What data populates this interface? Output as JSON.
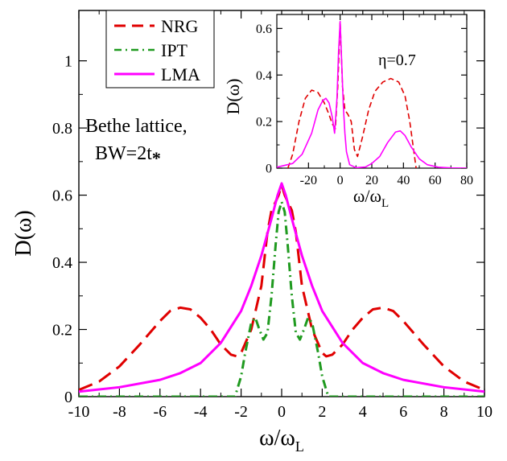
{
  "chart_data": [
    {
      "id": "main",
      "type": "line",
      "xlabel": {
        "base": "ω/ω",
        "sub": "L"
      },
      "ylabel": "D(ω)",
      "xlim": [
        -10,
        10
      ],
      "ylim": [
        0,
        1.15
      ],
      "xticks": [
        -10,
        -8,
        -6,
        -4,
        -2,
        0,
        2,
        4,
        6,
        8,
        10
      ],
      "xtick_labels": [
        "-10",
        "-8",
        "-6",
        "-4",
        "-2",
        "0",
        "2",
        "4",
        "6",
        "8",
        "10"
      ],
      "yticks": [
        0,
        0.2,
        0.4,
        0.6,
        0.8,
        1
      ],
      "ytick_labels": [
        "0",
        "0.2",
        "0.4",
        "0.6",
        "0.8",
        "1"
      ],
      "annotation": {
        "line1": "Bethe lattice,",
        "line2": "BW=2t",
        "line2_sub": "*"
      },
      "legend": {
        "placement": "top-left",
        "entries": [
          "NRG",
          "IPT",
          "LMA"
        ]
      },
      "series": [
        {
          "name": "NRG",
          "color": "#e00000",
          "style": "dashed",
          "points": [
            [
              -10,
              0.02
            ],
            [
              -9,
              0.045
            ],
            [
              -8,
              0.09
            ],
            [
              -7,
              0.155
            ],
            [
              -6,
              0.225
            ],
            [
              -5.5,
              0.255
            ],
            [
              -5,
              0.265
            ],
            [
              -4.5,
              0.26
            ],
            [
              -4,
              0.235
            ],
            [
              -3.5,
              0.2
            ],
            [
              -3,
              0.155
            ],
            [
              -2.5,
              0.125
            ],
            [
              -2.2,
              0.12
            ],
            [
              -2,
              0.13
            ],
            [
              -1.5,
              0.2
            ],
            [
              -1,
              0.33
            ],
            [
              -0.7,
              0.49
            ],
            [
              -0.5,
              0.555
            ],
            [
              -0.3,
              0.58
            ],
            [
              -0.15,
              0.6
            ],
            [
              0,
              0.63
            ],
            [
              0.15,
              0.6
            ],
            [
              0.3,
              0.58
            ],
            [
              0.5,
              0.555
            ],
            [
              0.7,
              0.49
            ],
            [
              1,
              0.33
            ],
            [
              1.5,
              0.2
            ],
            [
              2,
              0.13
            ],
            [
              2.2,
              0.12
            ],
            [
              2.5,
              0.125
            ],
            [
              3,
              0.155
            ],
            [
              3.5,
              0.2
            ],
            [
              4,
              0.235
            ],
            [
              4.5,
              0.26
            ],
            [
              5,
              0.265
            ],
            [
              5.5,
              0.255
            ],
            [
              6,
              0.225
            ],
            [
              7,
              0.155
            ],
            [
              8,
              0.09
            ],
            [
              9,
              0.045
            ],
            [
              10,
              0.02
            ]
          ]
        },
        {
          "name": "IPT",
          "color": "#1f9a1f",
          "style": "dashdot",
          "points": [
            [
              -10,
              0
            ],
            [
              -2.3,
              0
            ],
            [
              -2,
              0.06
            ],
            [
              -1.8,
              0.13
            ],
            [
              -1.5,
              0.22
            ],
            [
              -1.3,
              0.235
            ],
            [
              -1.1,
              0.2
            ],
            [
              -0.9,
              0.17
            ],
            [
              -0.7,
              0.19
            ],
            [
              -0.5,
              0.3
            ],
            [
              -0.3,
              0.45
            ],
            [
              -0.15,
              0.55
            ],
            [
              0,
              0.58
            ],
            [
              0.15,
              0.55
            ],
            [
              0.3,
              0.45
            ],
            [
              0.5,
              0.3
            ],
            [
              0.7,
              0.19
            ],
            [
              0.9,
              0.17
            ],
            [
              1.1,
              0.2
            ],
            [
              1.3,
              0.235
            ],
            [
              1.5,
              0.22
            ],
            [
              1.8,
              0.13
            ],
            [
              2,
              0.06
            ],
            [
              2.3,
              0
            ],
            [
              10,
              0
            ]
          ]
        },
        {
          "name": "LMA",
          "color": "#ff00ff",
          "style": "solid",
          "points": [
            [
              -10,
              0.015
            ],
            [
              -8,
              0.028
            ],
            [
              -6,
              0.05
            ],
            [
              -5,
              0.07
            ],
            [
              -4,
              0.1
            ],
            [
              -3,
              0.16
            ],
            [
              -2,
              0.255
            ],
            [
              -1.5,
              0.33
            ],
            [
              -1,
              0.42
            ],
            [
              -0.5,
              0.53
            ],
            [
              -0.2,
              0.6
            ],
            [
              0,
              0.635
            ],
            [
              0.2,
              0.6
            ],
            [
              0.5,
              0.53
            ],
            [
              1,
              0.42
            ],
            [
              1.5,
              0.33
            ],
            [
              2,
              0.255
            ],
            [
              3,
              0.16
            ],
            [
              4,
              0.1
            ],
            [
              5,
              0.07
            ],
            [
              6,
              0.05
            ],
            [
              8,
              0.028
            ],
            [
              10,
              0.015
            ]
          ]
        }
      ]
    },
    {
      "id": "inset",
      "type": "line",
      "xlabel": {
        "base": "ω/ω",
        "sub": "L"
      },
      "ylabel": "D(ω)",
      "xlim": [
        -40,
        80
      ],
      "ylim": [
        0,
        0.66
      ],
      "xticks": [
        -20,
        0,
        20,
        40,
        60,
        80
      ],
      "xtick_labels": [
        "-20",
        "0",
        "20",
        "40",
        "60",
        "80"
      ],
      "yticks": [
        0,
        0.2,
        0.4,
        0.6
      ],
      "ytick_labels": [
        "0",
        "0.2",
        "0.4",
        "0.6"
      ],
      "annotation": "η=0.7",
      "series": [
        {
          "name": "NRG",
          "color": "#e00000",
          "style": "dashed",
          "points": [
            [
              -33,
              0
            ],
            [
              -30,
              0.06
            ],
            [
              -26,
              0.2
            ],
            [
              -22,
              0.3
            ],
            [
              -18,
              0.335
            ],
            [
              -14,
              0.325
            ],
            [
              -10,
              0.28
            ],
            [
              -7,
              0.23
            ],
            [
              -5,
              0.19
            ],
            [
              -3,
              0.17
            ],
            [
              -1.5,
              0.35
            ],
            [
              0,
              0.63
            ],
            [
              1.5,
              0.35
            ],
            [
              3,
              0.25
            ],
            [
              5,
              0.23
            ],
            [
              7,
              0.2
            ],
            [
              9,
              0.08
            ],
            [
              11,
              0.05
            ],
            [
              14,
              0.13
            ],
            [
              18,
              0.25
            ],
            [
              22,
              0.33
            ],
            [
              27,
              0.37
            ],
            [
              32,
              0.385
            ],
            [
              37,
              0.37
            ],
            [
              41,
              0.31
            ],
            [
              44,
              0.2
            ],
            [
              47,
              0.05
            ],
            [
              48,
              0
            ]
          ]
        },
        {
          "name": "LMA",
          "color": "#ff00ff",
          "style": "solid",
          "points": [
            [
              -40,
              0.004
            ],
            [
              -30,
              0.02
            ],
            [
              -24,
              0.06
            ],
            [
              -18,
              0.15
            ],
            [
              -14,
              0.25
            ],
            [
              -11,
              0.29
            ],
            [
              -9,
              0.3
            ],
            [
              -7,
              0.28
            ],
            [
              -5,
              0.22
            ],
            [
              -3.5,
              0.15
            ],
            [
              -2,
              0.3
            ],
            [
              -1,
              0.5
            ],
            [
              0,
              0.63
            ],
            [
              1,
              0.45
            ],
            [
              2,
              0.27
            ],
            [
              3,
              0.15
            ],
            [
              4,
              0.07
            ],
            [
              6,
              0.015
            ],
            [
              10,
              0.002
            ],
            [
              16,
              0.005
            ],
            [
              20,
              0.02
            ],
            [
              25,
              0.05
            ],
            [
              30,
              0.11
            ],
            [
              35,
              0.155
            ],
            [
              38,
              0.16
            ],
            [
              41,
              0.14
            ],
            [
              45,
              0.09
            ],
            [
              50,
              0.04
            ],
            [
              55,
              0.015
            ],
            [
              62,
              0.004
            ],
            [
              70,
              0.001
            ],
            [
              80,
              0
            ]
          ]
        }
      ]
    }
  ]
}
